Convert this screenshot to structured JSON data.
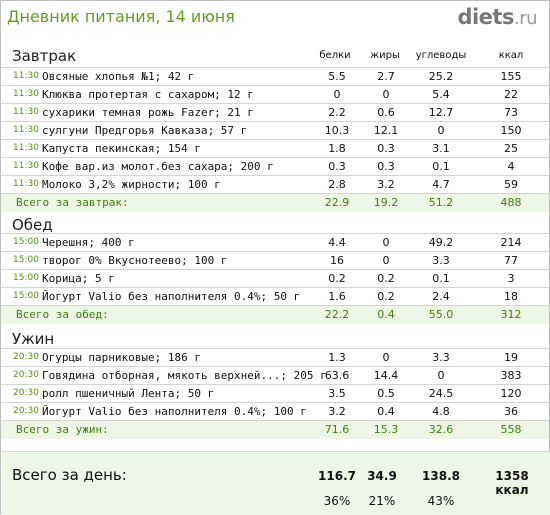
{
  "header": {
    "title": "Дневник питания, 14 июня",
    "logo_main": "diets",
    "logo_tld": ".ru"
  },
  "columns": {
    "protein": "белки",
    "fat": "жиры",
    "carbs": "углеводы",
    "kcal": "ккал"
  },
  "sections": [
    {
      "title": "Завтрак",
      "rows": [
        {
          "time": "11:30",
          "food": "Овсяные хлопья №1; 42 г",
          "protein": "5.5",
          "fat": "2.7",
          "carbs": "25.2",
          "kcal": "155"
        },
        {
          "time": "11:30",
          "food": "Клюква протертая с сахаром; 12 г",
          "protein": "0",
          "fat": "0",
          "carbs": "5.4",
          "kcal": "22"
        },
        {
          "time": "11:30",
          "food": "сухарики темная рожь Fazer; 21 г",
          "protein": "2.2",
          "fat": "0.6",
          "carbs": "12.7",
          "kcal": "73"
        },
        {
          "time": "11:30",
          "food": "сулгуни Предгорья Кавказа; 57 г",
          "protein": "10.3",
          "fat": "12.1",
          "carbs": "0",
          "kcal": "150"
        },
        {
          "time": "11:30",
          "food": "Капуста пекинская; 154 г",
          "protein": "1.8",
          "fat": "0.3",
          "carbs": "3.1",
          "kcal": "25"
        },
        {
          "time": "11:30",
          "food": "Кофе вар.из молот.без сахара; 200 г",
          "protein": "0.3",
          "fat": "0.3",
          "carbs": "0.1",
          "kcal": "4"
        },
        {
          "time": "11:30",
          "food": "Молоко 3,2% жирности; 100 г",
          "protein": "2.8",
          "fat": "3.2",
          "carbs": "4.7",
          "kcal": "59"
        }
      ],
      "total": {
        "label": "Всего за завтрак:",
        "protein": "22.9",
        "fat": "19.2",
        "carbs": "51.2",
        "kcal": "488"
      }
    },
    {
      "title": "Обед",
      "rows": [
        {
          "time": "15:00",
          "food": "Черешня; 400 г",
          "protein": "4.4",
          "fat": "0",
          "carbs": "49.2",
          "kcal": "214"
        },
        {
          "time": "15:00",
          "food": "творог 0% Вкуснотеево; 100 г",
          "protein": "16",
          "fat": "0",
          "carbs": "3.3",
          "kcal": "77"
        },
        {
          "time": "15:00",
          "food": "Корица; 5 г",
          "protein": "0.2",
          "fat": "0.2",
          "carbs": "0.1",
          "kcal": "3"
        },
        {
          "time": "15:00",
          "food": "Йогурт Valio без наполнителя 0.4%; 50 г",
          "protein": "1.6",
          "fat": "0.2",
          "carbs": "2.4",
          "kcal": "18"
        }
      ],
      "total": {
        "label": "Всего за обед:",
        "protein": "22.2",
        "fat": "0.4",
        "carbs": "55.0",
        "kcal": "312"
      }
    },
    {
      "title": "Ужин",
      "rows": [
        {
          "time": "20:30",
          "food": "Огурцы парниковые; 186 г",
          "protein": "1.3",
          "fat": "0",
          "carbs": "3.3",
          "kcal": "19"
        },
        {
          "time": "20:30",
          "food": "Говядина отборная, мякоть верхней...; 205 г",
          "protein": "63.6",
          "fat": "14.4",
          "carbs": "0",
          "kcal": "383"
        },
        {
          "time": "20:30",
          "food": "ролл пшеничный Лента; 50 г",
          "protein": "3.5",
          "fat": "0.5",
          "carbs": "24.5",
          "kcal": "120"
        },
        {
          "time": "20:30",
          "food": "Йогурт Valio без наполнителя 0.4%; 100 г",
          "protein": "3.2",
          "fat": "0.4",
          "carbs": "4.8",
          "kcal": "36"
        }
      ],
      "total": {
        "label": "Всего за ужин:",
        "protein": "71.6",
        "fat": "15.3",
        "carbs": "32.6",
        "kcal": "558"
      }
    }
  ],
  "day": {
    "label": "Всего за день:",
    "protein": "116.7",
    "fat": "34.9",
    "carbs": "138.8",
    "kcal": "1358 ккал",
    "protein_pct": "36%",
    "fat_pct": "21%",
    "carbs_pct": "43%"
  }
}
